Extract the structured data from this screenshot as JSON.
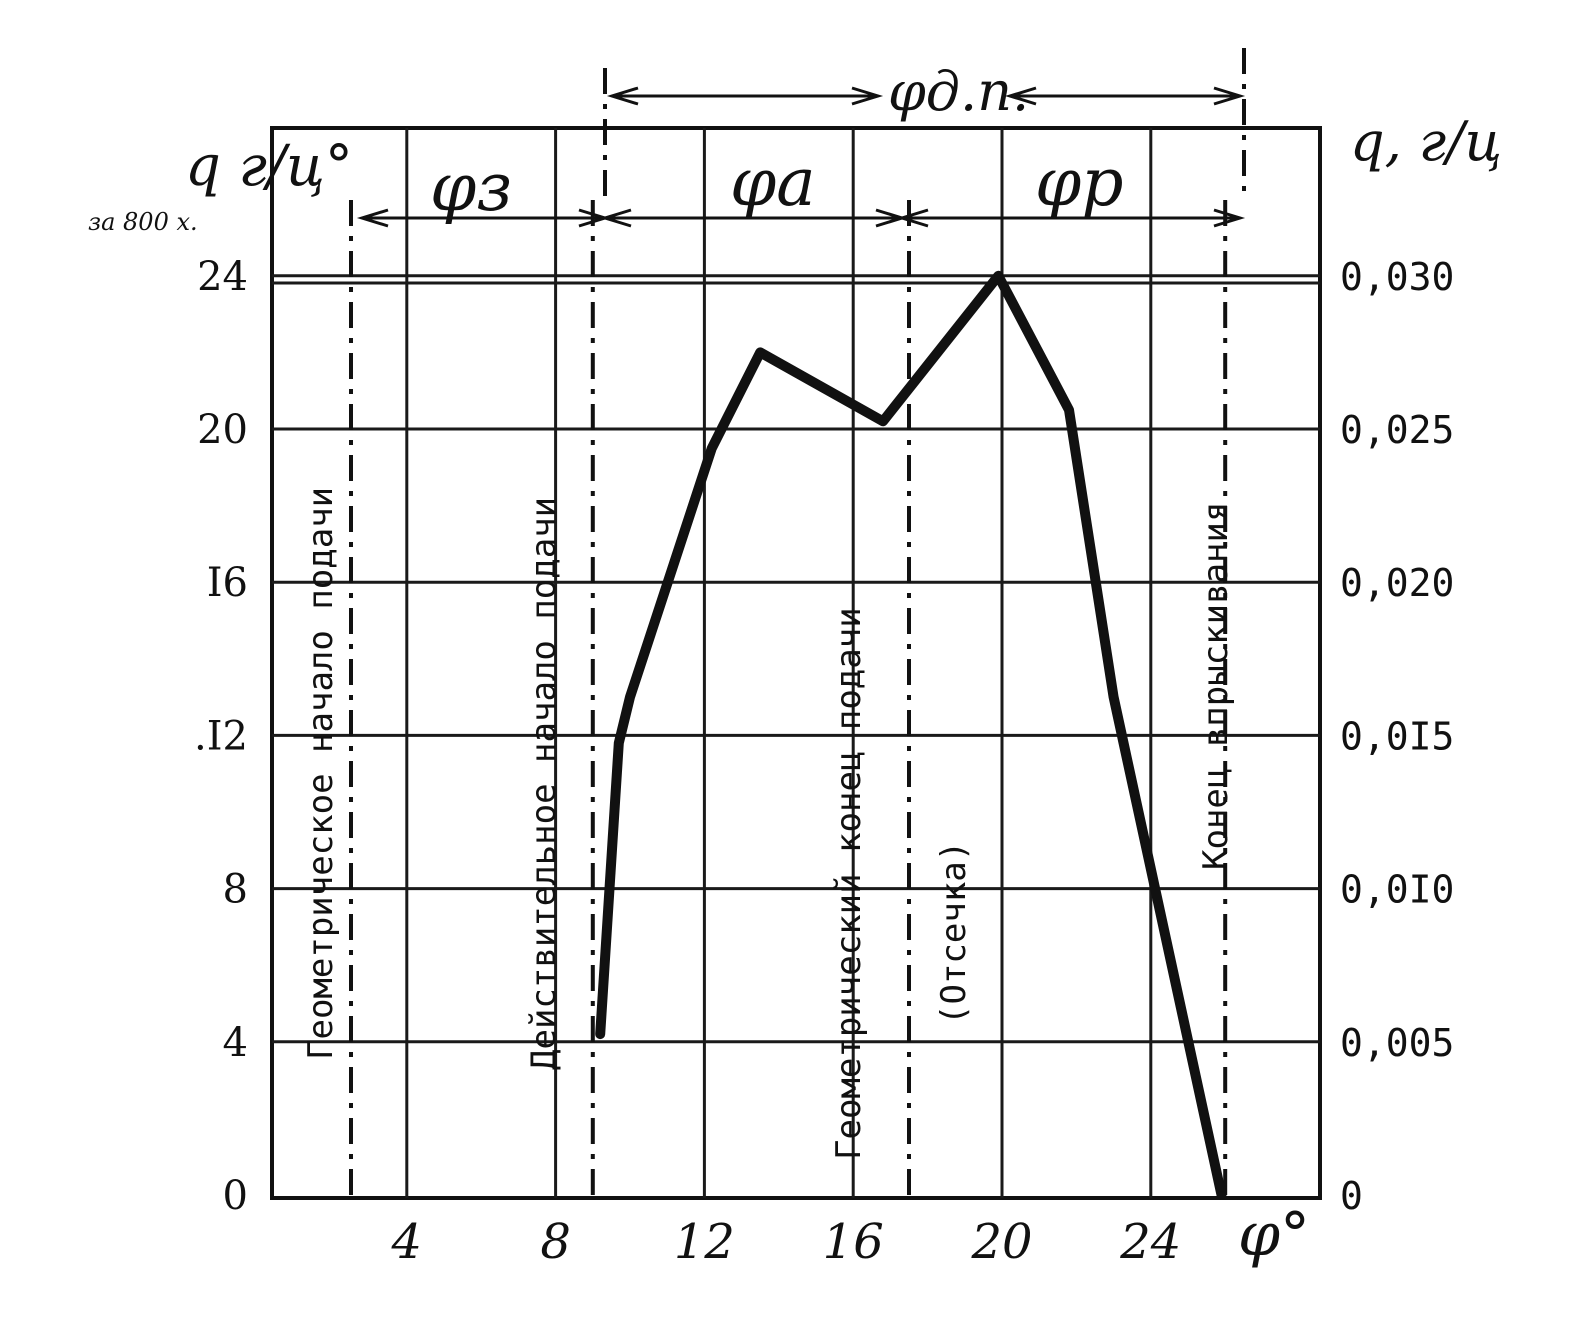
{
  "chart_data": {
    "type": "line",
    "x_axis": {
      "unit": "φ°",
      "ticks": [
        "4",
        "8",
        "12",
        "16",
        "20",
        "24"
      ],
      "range": [
        0,
        26
      ]
    },
    "y_left": {
      "label": "q г/ц°",
      "sublabel": "за 800 х.",
      "ticks": [
        "0",
        "4",
        "8",
        "I6",
        ".I2",
        "20",
        "24"
      ],
      "range": [
        0,
        24
      ]
    },
    "y_right": {
      "label": "q, г/ц",
      "ticks": [
        "0",
        "0,005",
        "0,0I0",
        "0,0I5",
        "0,020",
        "0,025",
        "0,030"
      ],
      "range": [
        0,
        0.03
      ]
    },
    "series": [
      {
        "points": [
          {
            "x": 9.2,
            "y": 4.2
          },
          {
            "x": 9.7,
            "y": 11.8
          },
          {
            "x": 10.0,
            "y": 13.0
          },
          {
            "x": 12.2,
            "y": 19.5
          },
          {
            "x": 13.5,
            "y": 22.0
          },
          {
            "x": 16.8,
            "y": 20.2
          },
          {
            "x": 19.9,
            "y": 24.0
          },
          {
            "x": 21.8,
            "y": 20.5
          },
          {
            "x": 23.0,
            "y": 13.0
          },
          {
            "x": 25.9,
            "y": 0
          }
        ]
      }
    ],
    "markers": [
      {
        "x": 2.5,
        "label": "Геометрическое начало подачи"
      },
      {
        "x": 9.0,
        "label": "Действительное начало подачи"
      },
      {
        "x": 17.5,
        "label": "Геометрический конец подачи",
        "note": "(Отсечка)"
      },
      {
        "x": 26.0,
        "label": "Конец впрыскивания"
      }
    ],
    "intervals": {
      "phi_z": "φз",
      "phi_a": "φа",
      "phi_p": "φр",
      "phi_dp": "φд.п."
    },
    "grid": true
  }
}
